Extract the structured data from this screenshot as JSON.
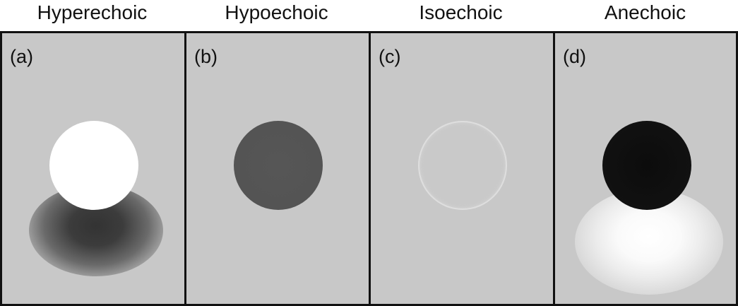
{
  "titles": [
    "Hyperechoic",
    "Hypoechoic",
    "Isoechoic",
    "Anechoic"
  ],
  "panels": [
    {
      "label": "(a)"
    },
    {
      "label": "(b)"
    },
    {
      "label": "(c)"
    },
    {
      "label": "(d)"
    }
  ]
}
